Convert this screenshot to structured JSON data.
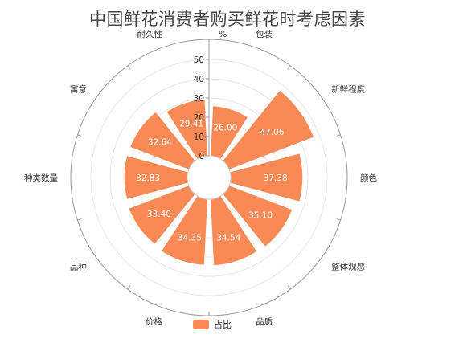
{
  "chart_data": {
    "type": "bar",
    "subtype": "polar-bar",
    "title": "中国鲜花消费者购买鲜花时考虑因素",
    "unit": "%",
    "categories": [
      "包装",
      "新鲜程度",
      "颜色",
      "整体观感",
      "品质",
      "价格",
      "品种",
      "种类数量",
      "寓意",
      "耐久性"
    ],
    "series": [
      {
        "name": "占比",
        "values": [
          26.0,
          47.06,
          37.38,
          35.1,
          34.54,
          34.35,
          33.4,
          32.83,
          32.64,
          29.41
        ]
      }
    ],
    "value_labels": [
      "26.00",
      "47.06",
      "37.38",
      "35.10",
      "34.54",
      "34.35",
      "33.40",
      "32.83",
      "32.64",
      "29.41"
    ],
    "radial_ticks": [
      "0",
      "10",
      "20",
      "30",
      "40",
      "50"
    ],
    "rlim": [
      0,
      50
    ],
    "legend_position": "bottom-center",
    "grid": true,
    "color": "#f98a56"
  }
}
